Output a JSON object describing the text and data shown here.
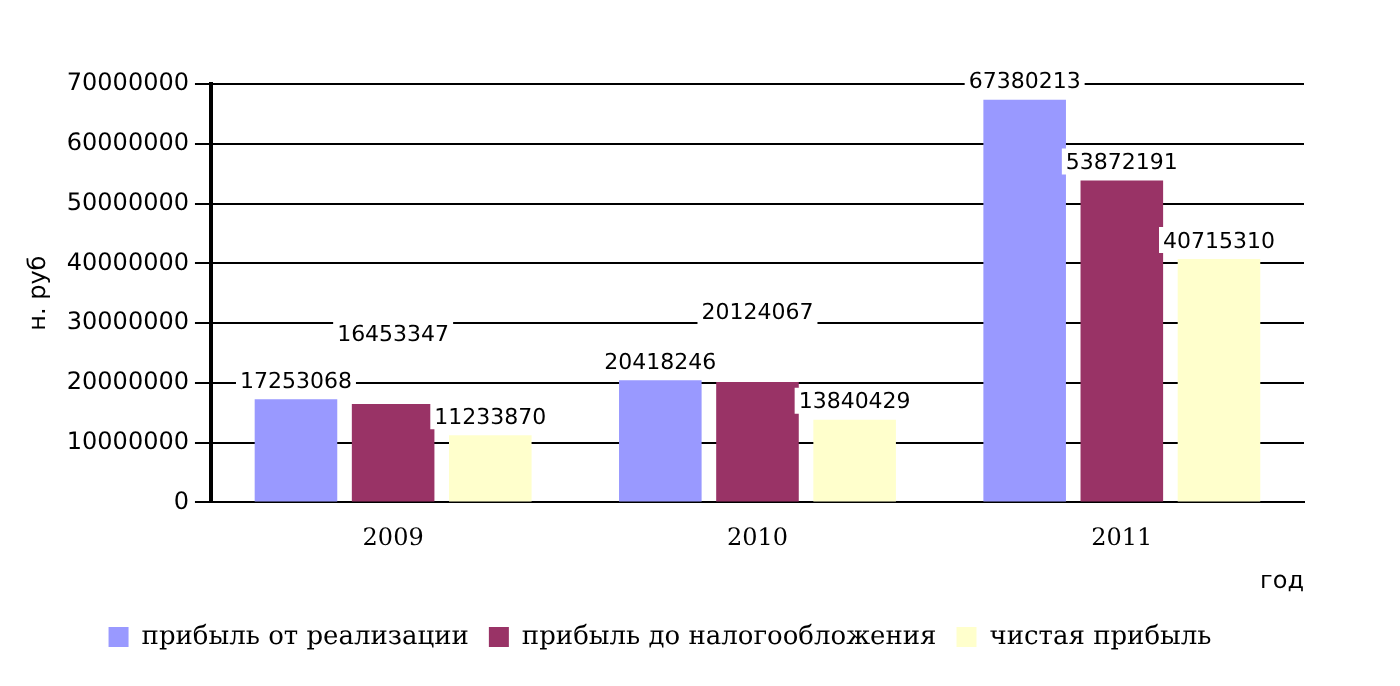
{
  "chart_data": {
    "type": "bar",
    "xlabel": "год",
    "ylabel": "н. руб",
    "categories": [
      "2009",
      "2010",
      "2011"
    ],
    "series": [
      {
        "name": "прибыль от реализации",
        "color": "#9999ff",
        "values": [
          17253068,
          20418246,
          67380213
        ]
      },
      {
        "name": "прибыль до налогообложения",
        "color": "#993366",
        "values": [
          16453347,
          20124067,
          53872191
        ]
      },
      {
        "name": "чистая прибыль",
        "color": "#ffffcc",
        "values": [
          11233870,
          13840429,
          40715310
        ]
      }
    ],
    "ylim": [
      0,
      70000000
    ],
    "yticks": [
      0,
      10000000,
      20000000,
      30000000,
      40000000,
      50000000,
      60000000,
      70000000
    ],
    "grid": "y",
    "legend": "bottom",
    "data_labels": true
  }
}
